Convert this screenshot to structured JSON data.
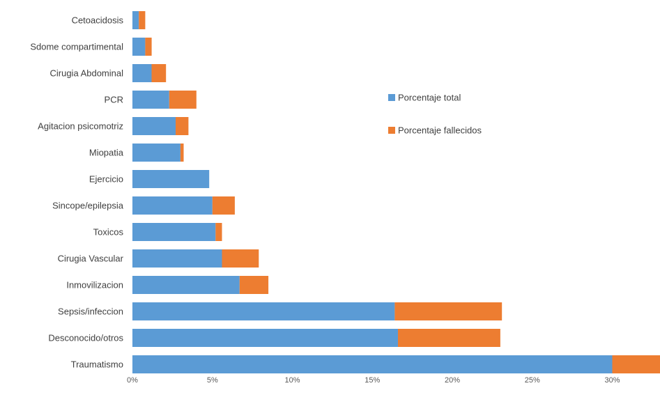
{
  "chart_data": {
    "type": "bar",
    "orientation": "horizontal",
    "stacked": true,
    "title": "",
    "xlabel": "",
    "ylabel": "",
    "categories": [
      "Cetoacidosis",
      "Sdome compartimental",
      "Cirugia Abdominal",
      "PCR",
      "Agitacion psicomotriz",
      "Miopatia",
      "Ejercicio",
      "Sincope/epilepsia",
      "Toxicos",
      "Cirugia Vascular",
      "Inmovilizacion",
      "Sepsis/infeccion",
      "Desconocido/otros",
      "Traumatismo"
    ],
    "series": [
      {
        "name": "Porcentaje total",
        "color": "#5b9bd5",
        "values": [
          0.4,
          0.8,
          1.2,
          2.3,
          2.7,
          3.0,
          4.8,
          5.0,
          5.2,
          5.6,
          6.7,
          16.4,
          16.6,
          30.0
        ]
      },
      {
        "name": "Porcentaje fallecidos",
        "color": "#ed7d31",
        "values": [
          0.4,
          0.4,
          0.9,
          1.7,
          0.8,
          0.2,
          0.0,
          1.4,
          0.4,
          2.3,
          1.8,
          6.7,
          6.4,
          3.0
        ]
      }
    ],
    "xlim": [
      0,
      33
    ],
    "xticks": [
      0,
      5,
      10,
      15,
      20,
      25,
      30
    ],
    "xtick_labels": [
      "0%",
      "5%",
      "10%",
      "15%",
      "20%",
      "25%",
      "30%"
    ],
    "grid": false,
    "legend_position": "right"
  }
}
